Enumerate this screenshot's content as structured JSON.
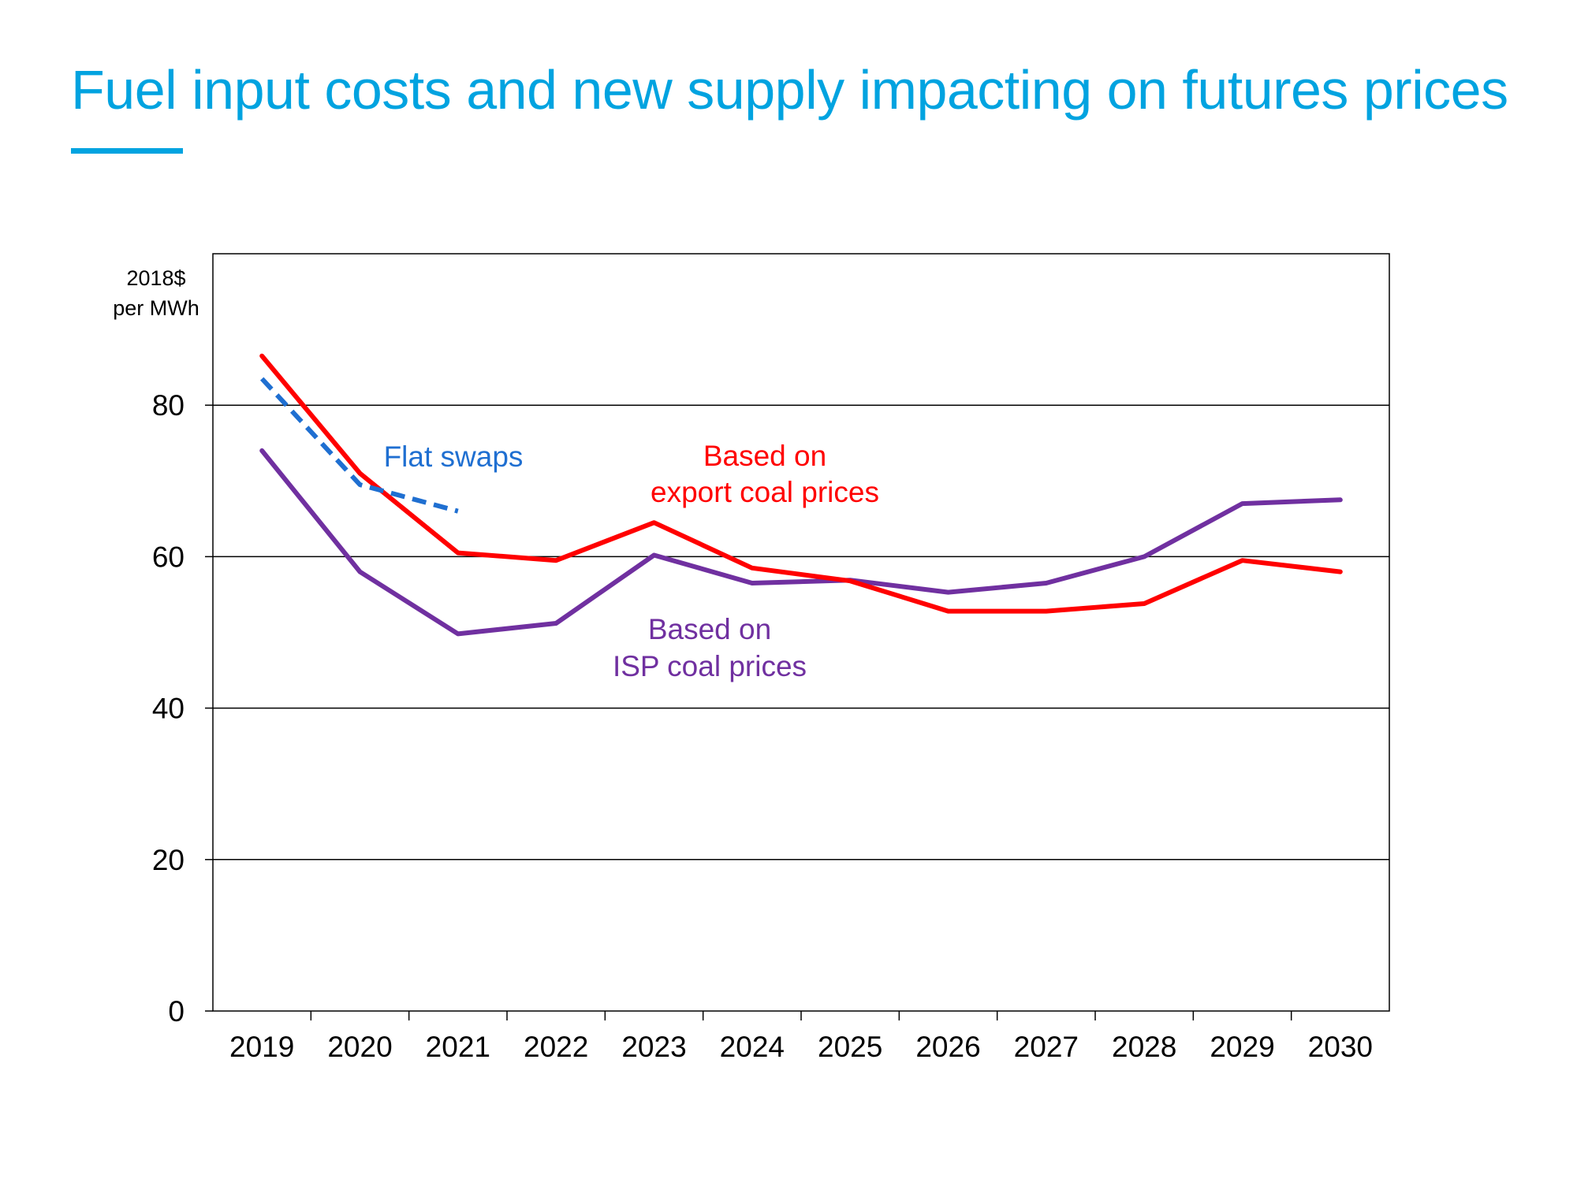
{
  "slide": {
    "title": "Fuel input costs and new supply impacting on futures prices"
  },
  "colors": {
    "title": "#00a3e0",
    "export": "#ff0000",
    "isp": "#7030a0",
    "swaps": "#1f6fd1",
    "axis": "#000000"
  },
  "chart_data": {
    "type": "line",
    "title": "Fuel input costs and new supply impacting on futures prices",
    "ylabel_lines": [
      "2018$",
      "per MWh"
    ],
    "xlabel": "",
    "categories": [
      "2019",
      "2020",
      "2021",
      "2022",
      "2023",
      "2024",
      "2025",
      "2026",
      "2027",
      "2028",
      "2029",
      "2030"
    ],
    "ylim": [
      0,
      100
    ],
    "yticks": [
      0,
      20,
      40,
      60,
      80
    ],
    "grid": true,
    "series": [
      {
        "key": "export",
        "name": "Based on export coal prices",
        "label_lines": [
          "Based on",
          "export coal prices"
        ],
        "style": "solid",
        "values": [
          86.5,
          71,
          60.5,
          59.5,
          64.5,
          58.5,
          56.8,
          52.8,
          52.8,
          53.8,
          59.5,
          58
        ]
      },
      {
        "key": "isp",
        "name": "Based on ISP coal prices",
        "label_lines": [
          "Based on",
          "ISP coal prices"
        ],
        "style": "solid",
        "values": [
          74,
          58,
          49.8,
          51.2,
          60.2,
          56.5,
          56.9,
          55.3,
          56.5,
          60,
          67,
          67.5
        ]
      },
      {
        "key": "swaps",
        "name": "Flat swaps",
        "label_lines": [
          "Flat swaps"
        ],
        "style": "dashed",
        "values": [
          83.5,
          69.5,
          66,
          null,
          null,
          null,
          null,
          null,
          null,
          null,
          null,
          null
        ]
      }
    ]
  }
}
